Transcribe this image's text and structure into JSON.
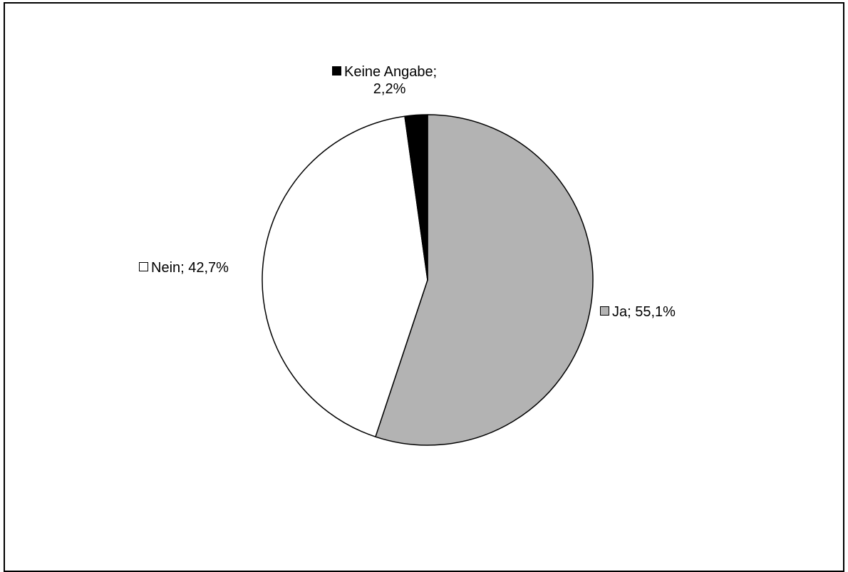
{
  "chart_data": {
    "type": "pie",
    "slices": [
      {
        "name": "Ja",
        "value": 55.1,
        "label": "Ja; 55,1%",
        "color": "#b3b3b3"
      },
      {
        "name": "Nein",
        "value": 42.7,
        "label": "Nein; 42,7%",
        "color": "#ffffff"
      },
      {
        "name": "Keine Angabe",
        "value": 2.2,
        "label_line1": "Keine Angabe;",
        "label_line2": "2,2%",
        "color": "#000000"
      }
    ],
    "start_angle": "12 o'clock",
    "direction": "clockwise"
  }
}
